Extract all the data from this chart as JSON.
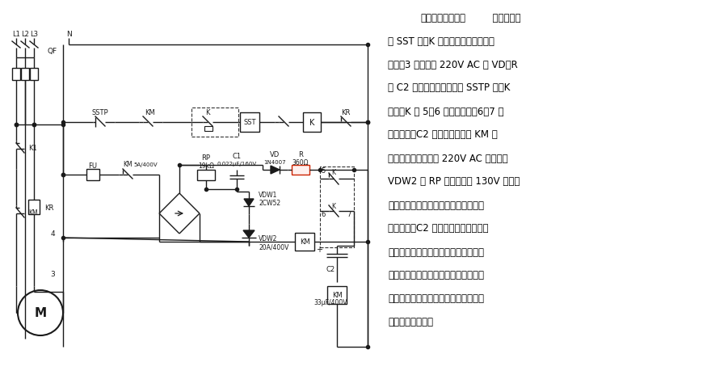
{
  "bg_color": "#ffffff",
  "line_color": "#1a1a1a",
  "title_bold": "直流能耗制动电路",
  "title_rest": "  按下起动接",
  "body_lines": [
    "钮 SST 后，K 得电吸合并自锁，电机",
    "运转。3 端对地的 220V AC 经 VD、R",
    "向 C2 充电。当按下停止键 SSTP 后，K",
    "失电（K 的 5、6 触点先断开，6、7 点",
    "后接通）。C2 通过中间继电器 KM 放",
    "电，并使其吸合，使 220V AC 经整流、",
    "VDW2 及 RP 调节，将约 130V 直流脉",
    "动电压加至电机一组线圈的两端，起到",
    "制动作用。C2 放电完毕，结束制动，",
    "电路恢复正常。图中虚线框内的常闭点",
    "是控制环节中的触点。此电路适用于在",
    "电机高速运转中需急停的制动场合，如",
    "称重下料控制等。"
  ],
  "lw": 1.0,
  "lw2": 1.5
}
